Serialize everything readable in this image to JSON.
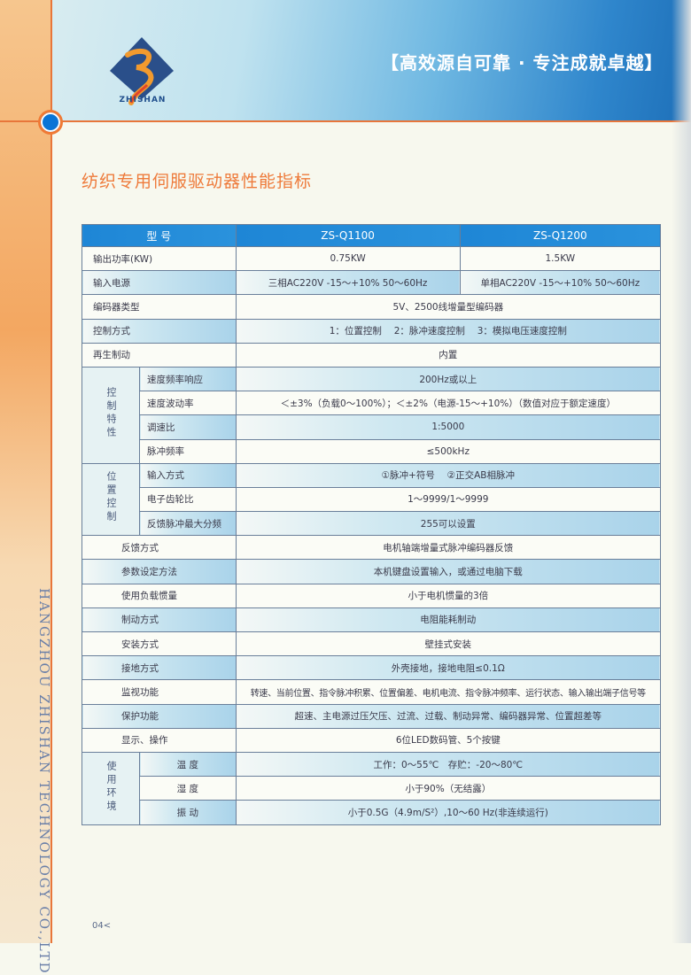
{
  "header": {
    "logo_text": "ZHISHAN",
    "slogan": "【高效源自可靠 · 专注成就卓越】"
  },
  "title": "纺织专用伺服驱动器性能指标",
  "side_text": "HANGZHOU ZHISHAN TECHNOLOGY CO.,LTD",
  "page_number": "04<",
  "table": {
    "header": {
      "label": "型 号",
      "col1": "ZS-Q1100",
      "col2": "ZS-Q1200"
    },
    "rows": [
      {
        "label": "输出功率(KW)",
        "v1": "0.75KW",
        "v2": "1.5KW"
      },
      {
        "label": "输入电源",
        "v1": "三相AC220V -15～+10% 50～60Hz",
        "v2": "单相AC220V -15～+10% 50～60Hz"
      },
      {
        "label": "编码器类型",
        "value": "5V、2500线增量型编码器"
      },
      {
        "label": "控制方式",
        "value": "1：位置控制　 2：脉冲速度控制　 3：模拟电压速度控制"
      },
      {
        "label": "再生制动",
        "value": "内置"
      }
    ],
    "group_control": {
      "label": "控制特性",
      "rows": [
        {
          "label": "速度频率响应",
          "value": "200Hz或以上"
        },
        {
          "label": "速度波动率",
          "value": "＜±3%（负载0～100%）；＜±2%（电源-15～+10%）（数值对应于额定速度）"
        },
        {
          "label": "调速比",
          "value": "1:5000"
        },
        {
          "label": "脉冲频率",
          "value": "≤500kHz"
        }
      ]
    },
    "group_position": {
      "label": "位置控制",
      "rows": [
        {
          "label": "输入方式",
          "value": "①脉冲+符号　 ②正交AB相脉冲"
        },
        {
          "label": "电子齿轮比",
          "value": "1～9999/1～9999"
        },
        {
          "label": "反馈脉冲最大分频",
          "value": "255可以设置"
        }
      ]
    },
    "rows2": [
      {
        "label": "反馈方式",
        "value": "电机轴端增量式脉冲编码器反馈"
      },
      {
        "label": "参数设定方法",
        "value": "本机键盘设置输入，或通过电脑下载"
      },
      {
        "label": "使用负载惯量",
        "value": "小于电机惯量的3倍"
      },
      {
        "label": "制动方式",
        "value": "电阻能耗制动"
      },
      {
        "label": "安装方式",
        "value": "壁挂式安装"
      },
      {
        "label": "接地方式",
        "value": "外壳接地，接地电阻≤0.1Ω"
      },
      {
        "label": "监视功能",
        "value": "转速、当前位置、指令脉冲积累、位置偏差、电机电流、指令脉冲频率、运行状态、输入输出端子信号等"
      },
      {
        "label": "保护功能",
        "value": "超速、主电源过压欠压、过流、过载、制动异常、编码器异常、位置超差等"
      },
      {
        "label": "显示、操作",
        "value": "6位LED数码管、5个按键"
      }
    ],
    "group_env": {
      "label": "使用环境",
      "rows": [
        {
          "label": "温 度",
          "value": "工作：0～55℃　存贮：-20～80℃"
        },
        {
          "label": "湿 度",
          "value": "小于90%（无结露）"
        },
        {
          "label": "振 动",
          "value": "小于0.5G（4.9m/S²）,10～60 Hz(非连续运行)"
        }
      ]
    }
  }
}
